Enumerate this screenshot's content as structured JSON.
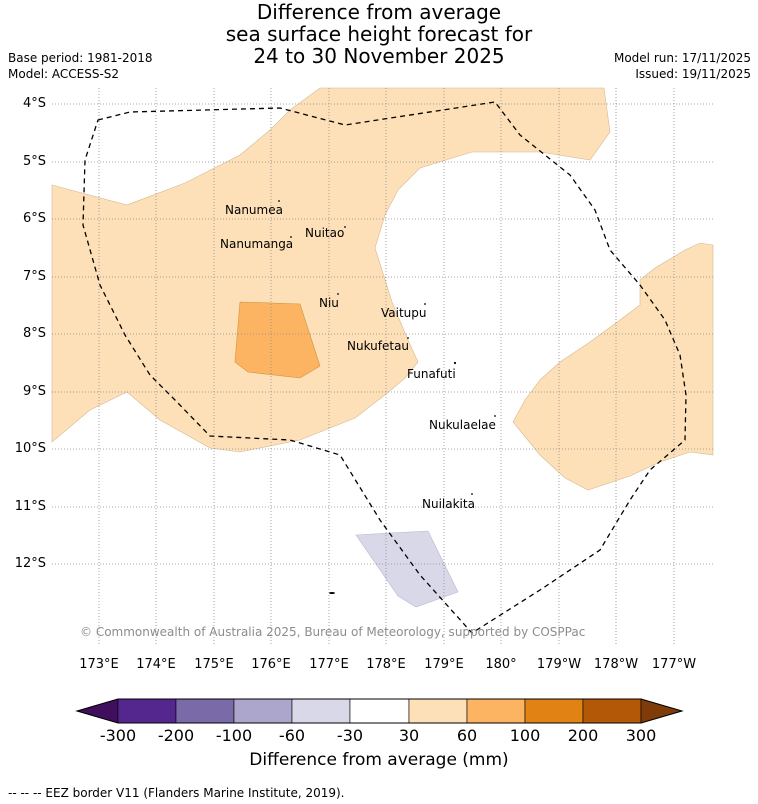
{
  "header": {
    "title_line1": "Difference from average",
    "title_line2": "sea surface height forecast for",
    "title_line3": "24 to 30 November 2025",
    "base_period": "Base period: 1981-2018",
    "model": "Model: ACCESS-S2",
    "model_run": "Model run: 17/11/2025",
    "issued": "Issued: 19/11/2025"
  },
  "map": {
    "lat_labels": [
      "4°S",
      "5°S",
      "6°S",
      "7°S",
      "8°S",
      "9°S",
      "10°S",
      "11°S",
      "12°S"
    ],
    "lon_labels": [
      "173°E",
      "174°E",
      "175°E",
      "176°E",
      "177°E",
      "178°E",
      "179°E",
      "180°",
      "179°W",
      "178°W",
      "177°W"
    ],
    "islands": [
      "Nanumea",
      "Nuitao",
      "Nanumanga",
      "Niu",
      "Vaitupu",
      "Nukufetau",
      "Funafuti",
      "Nukulaelae",
      "Nuilakita"
    ],
    "copyright": "© Commonwealth of Australia 2025, Bureau of Meteorology, supported by COSPPac"
  },
  "colorbar": {
    "ticks": [
      "-300",
      "-200",
      "-100",
      "-60",
      "-30",
      "30",
      "60",
      "100",
      "200",
      "300"
    ],
    "colors": [
      "#3f0f5e",
      "#54278f",
      "#7b6aa8",
      "#aca6cc",
      "#d8d8e9",
      "#ffffff",
      "#fde0b7",
      "#fdb462",
      "#e08214",
      "#b35806",
      "#7f3b08"
    ],
    "label": "Difference from average (mm)"
  },
  "footer": {
    "eez_note": "-- -- -- EEZ border V11 (Flanders Marine Institute, 2019)."
  }
}
